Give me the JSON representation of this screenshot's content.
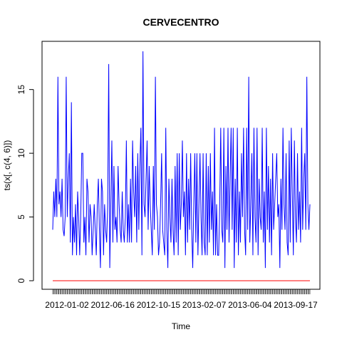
{
  "chart_data": {
    "type": "line",
    "title": "CERVECENTRO",
    "xlabel": "Time",
    "ylabel": "ts(x[, c(4, 6)])",
    "ylim": [
      0,
      18
    ],
    "yticks": [
      0,
      5,
      10,
      15
    ],
    "x_tick_labels": [
      "2012-01-02",
      "2012-06-16",
      "2012-10-15",
      "2013-02-07",
      "2013-06-04",
      "2013-09-17"
    ],
    "grid": false,
    "series": [
      {
        "color": "#0000ff",
        "values": [
          4,
          7,
          5,
          8,
          5,
          16,
          6,
          7,
          5,
          8,
          4,
          3.5,
          5,
          16,
          5,
          8,
          10,
          3,
          14,
          2,
          5,
          3,
          6,
          2,
          7,
          5,
          2,
          5,
          10,
          10,
          3,
          5,
          2,
          8,
          7,
          3,
          6,
          5,
          2,
          4,
          6,
          4,
          2,
          6,
          8,
          4,
          1,
          8,
          7,
          2,
          6,
          4,
          3,
          6,
          17,
          1,
          6,
          11,
          3,
          9,
          4,
          5,
          3,
          9,
          6,
          4,
          3,
          7,
          4,
          3,
          5,
          11,
          3,
          6,
          3,
          8,
          3,
          11,
          7,
          5,
          9,
          3,
          10,
          4,
          9,
          12,
          2,
          18,
          6,
          5,
          8,
          11,
          4,
          9,
          6,
          4,
          2,
          9,
          4,
          16,
          6,
          5,
          2,
          3,
          6,
          10,
          4,
          3,
          2,
          12,
          4,
          1,
          8,
          5,
          3,
          8,
          4,
          2,
          9,
          3,
          10,
          2,
          10,
          4,
          6,
          11,
          5,
          7,
          2,
          10,
          3,
          8,
          4,
          10,
          4,
          1,
          6,
          10,
          3,
          10,
          2,
          6,
          10,
          5,
          2,
          10,
          3,
          2,
          10,
          2,
          9,
          3,
          10,
          4,
          7,
          2,
          12,
          2,
          6,
          2,
          2,
          6,
          12,
          4,
          3,
          12,
          1,
          9,
          4,
          12,
          3,
          8,
          12,
          4,
          12,
          1,
          8,
          3,
          12,
          2,
          7,
          3,
          10,
          5,
          12,
          4,
          2,
          12,
          4,
          16,
          3,
          6,
          10,
          2,
          12,
          5,
          3,
          12,
          2,
          8,
          5,
          4,
          12,
          3,
          7,
          1,
          12,
          4,
          9,
          3,
          8,
          2,
          10,
          4,
          6,
          8,
          10,
          5,
          6,
          1,
          8,
          4,
          12,
          6,
          4,
          10,
          3,
          2,
          11,
          3,
          12,
          7,
          2,
          11,
          5,
          3,
          10,
          4,
          7,
          3,
          12,
          4,
          8,
          10,
          4,
          16,
          6,
          4,
          6
        ]
      },
      {
        "color": "#ff0000",
        "values": [
          0
        ]
      }
    ]
  }
}
